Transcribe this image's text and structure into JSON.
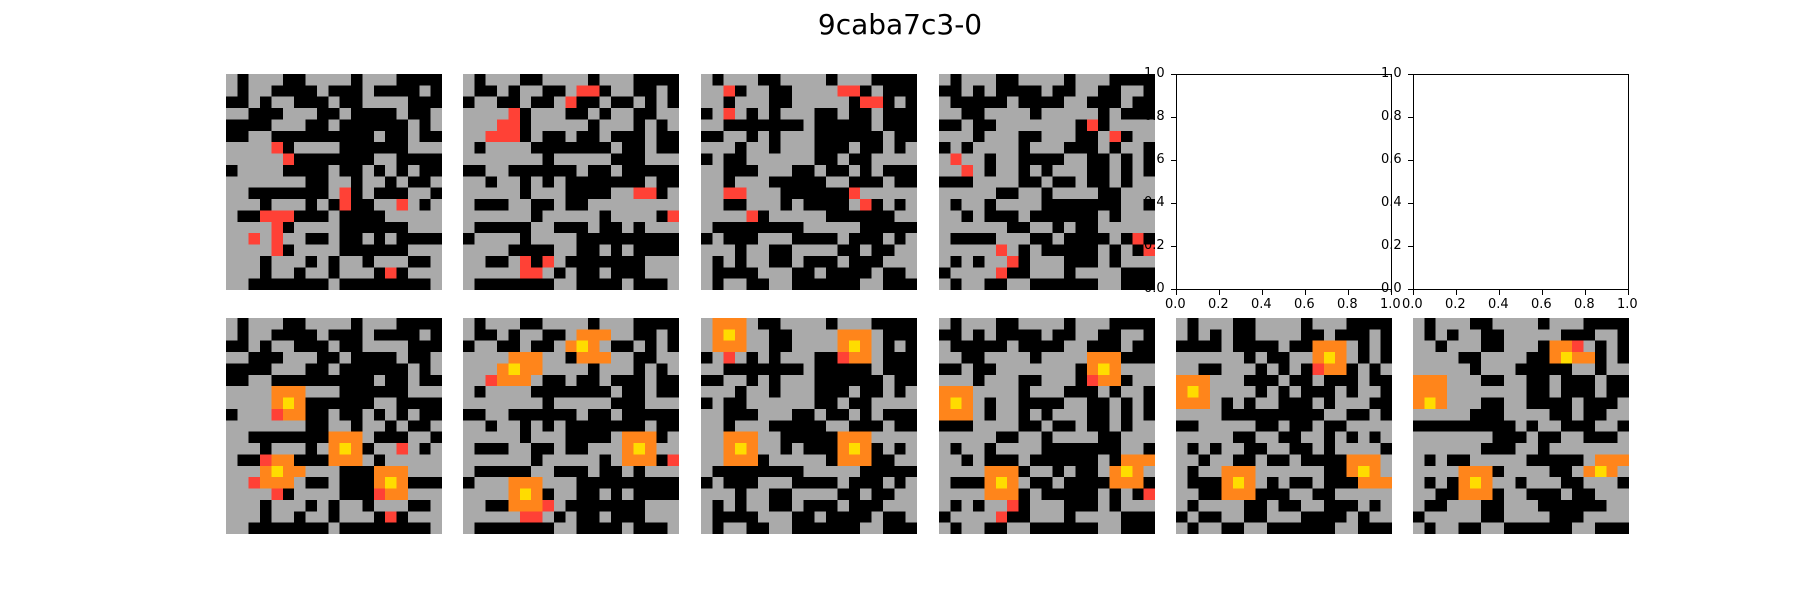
{
  "figure": {
    "title": "9caba7c3-0"
  },
  "colors": {
    "0": "#000000",
    "2": "#aaaaaa",
    "3": "#ff4136",
    "5": "#ff851b",
    "8": "#ffdc00"
  },
  "empty_axes": {
    "x_ticks": [
      "0.0",
      "0.2",
      "0.4",
      "0.6",
      "0.8",
      "1.0"
    ],
    "y_ticks": [
      "0.0",
      "0.2",
      "0.4",
      "0.6",
      "0.8",
      "1.0"
    ]
  },
  "rows": [
    {
      "panels": [
        {
          "kind": "grid",
          "rows": [
            "2022200222202220000",
            "2022000020002000020",
            "0020220002002222000",
            "2200022200200002002",
            "0000222002000000202",
            "0022000000000200200",
            "2222302222000000222",
            "2222230000000220000",
            "0222200002002020200",
            "2222222002202202002",
            "2200000002302000220",
            "2220222020300223202",
            "2003330002000022222",
            "2222302222000000222",
            "2232322002002020000",
            "2222302222000000222",
            "2220222020220222002",
            "2220220220222030222",
            "2200000002000000002"
          ]
        },
        {
          "kind": "grid",
          "rows": [
            "2022200222202220000",
            "2002022002330220020",
            "0220020023002002020",
            "2222302220020220022",
            "2223302222202220202",
            "2233302002002000200",
            "2022220000000200200",
            "2222222022222000222",
            "0022000000200200000",
            "2202202020000000200",
            "2222202220000223302",
            "2000220020022222222",
            "2222220222220222203",
            "2000002200020020222",
            "0222202222000000000",
            "2222000022002020000",
            "2200230320000000222",
            "2222233202002000222",
            "2000000022000020002"
          ]
        },
        {
          "kind": "grid",
          "rows": [
            "2022200222202220000",
            "2230220022223302000",
            "2202220022222033020",
            "0232020222002002000",
            "2200000002000002000",
            "0022020222000000200",
            "2220220222000200202",
            "0200222222002002222",
            "2200022200200202000",
            "2202220000022000200",
            "2233222000000322222",
            "2200222020000230202",
            "2222302222200000022",
            "2000000002222200000",
            "0200022200002000202",
            "2220220022220020022",
            "2020220020002000222",
            "2000022200200002002",
            "2022002200000022000"
          ]
        },
        {
          "kind": "grid",
          "rows": [
            "2022200222202220000",
            "0020200002002200220",
            "2000002000022000200",
            "2200222202222202000",
            "0020022222220302222",
            "2220222002220023022",
            "0202222022200020220",
            "2322022000022002020",
            "2232022020222002020",
            "0002222002002002022",
            "2222200220222200222",
            "2022022220000000220",
            "2202000200000020222",
            "2222220022020022222",
            "2000022200200002030",
            "2222232020000020203",
            "2020223022200020222",
            "0222230022202222000",
            "2022002200000022000"
          ]
        },
        {
          "kind": "axes"
        },
        {
          "kind": "axes"
        }
      ]
    },
    {
      "panels": [
        {
          "kind": "grid",
          "rows": [
            "2022200222202220000",
            "2022000020002000020",
            "0020220002002222000",
            "2200022200200002002",
            "0000222002000000202",
            "0022000000000200200",
            "2222555222000000222",
            "2222585000000220000",
            "0222355002002020200",
            "2222222002202202002",
            "2200000005552000220",
            "2220222025850223202",
            "2003550005552022222",
            "2225855222000555222",
            "2235552002000585000",
            "2222302222000355222",
            "2220222020220222002",
            "2220220220222030222",
            "2200000002000000002"
          ]
        },
        {
          "kind": "grid",
          "rows": [
            "2022200222202220000",
            "2002022002555220020",
            "0220020025852002020",
            "2222555220555220022",
            "2225855222202220202",
            "2235552002002000200",
            "2022220000000200200",
            "2222222022222000222",
            "0022000000200200000",
            "2202202020000000200",
            "2222202220000255502",
            "2000220020022258522",
            "2222220222220255503",
            "2000002200020020222",
            "0222555222000000000",
            "2222585022002020000",
            "2200555320000000222",
            "2222233202002000222",
            "2000000022000020002"
          ]
        },
        {
          "kind": "grid",
          "rows": [
            "2555200222202220000",
            "2585220022225552000",
            "2555220022225852020",
            "0232020222003552000",
            "2200000002000002000",
            "0022020222000000200",
            "2220220222000200202",
            "0200222222002002222",
            "2200022200200202000",
            "2202220000022000200",
            "2255522000005552222",
            "2258522020005850202",
            "2255502222205550022",
            "2000000002222200000",
            "0200022200002000202",
            "2220220022220020022",
            "2020220020002000222",
            "2000022200200002002",
            "2022002200000022000"
          ]
        },
        {
          "kind": "grid",
          "rows": [
            "2022200222202220000",
            "0020200002002200220",
            "2000002000022000200",
            "2200222202222555000",
            "0020022222220585222",
            "2220222002220355022",
            "5552222022200020220",
            "5852022000022002020",
            "5552022020222002020",
            "0002222002002002022",
            "2222200220222200222",
            "2022022220000000220",
            "2202000200000020555",
            "2222555022020025852",
            "2000585200200005550",
            "2222555020000020203",
            "2020223022200020222",
            "0222230022202222000",
            "2022002200000022000"
          ]
        },
        {
          "kind": "grid",
          "rows": [
            "2022200222202220000",
            "2020200222200200020",
            "0000200002005552020",
            "2222220200225852020",
            "2200222020203550202",
            "5552220002002000200",
            "5852222020200020220",
            "5552020220002022200",
            "2222000000000220020",
            "0022222002002002222",
            "2222200220022020202",
            "2020220022002022220",
            "2202200200200005552",
            "2022555222222005852",
            "2000585202002000555",
            "2200555000220022222",
            "2022220020022000202",
            "0200220022200002022",
            "2022002200000022000"
          ]
        },
        {
          "kind": "grid",
          "rows": [
            "2022200222202220000",
            "2020220022222000220",
            "2202220022205532020",
            "2222002222005855020",
            "2222202220000022022",
            "5552220022002000200",
            "5552222222002000200",
            "5852220022000020002",
            "2222200022220020022",
            "0000000002022000220",
            "2222222000200220002",
            "2222220002202222222",
            "2020022222000002555",
            "2222555022220025852",
            "2020585220222002220",
            "2200555022000200222",
            "2002220022200000022",
            "0222220022220002222",
            "2022002200000022000"
          ]
        }
      ]
    }
  ]
}
